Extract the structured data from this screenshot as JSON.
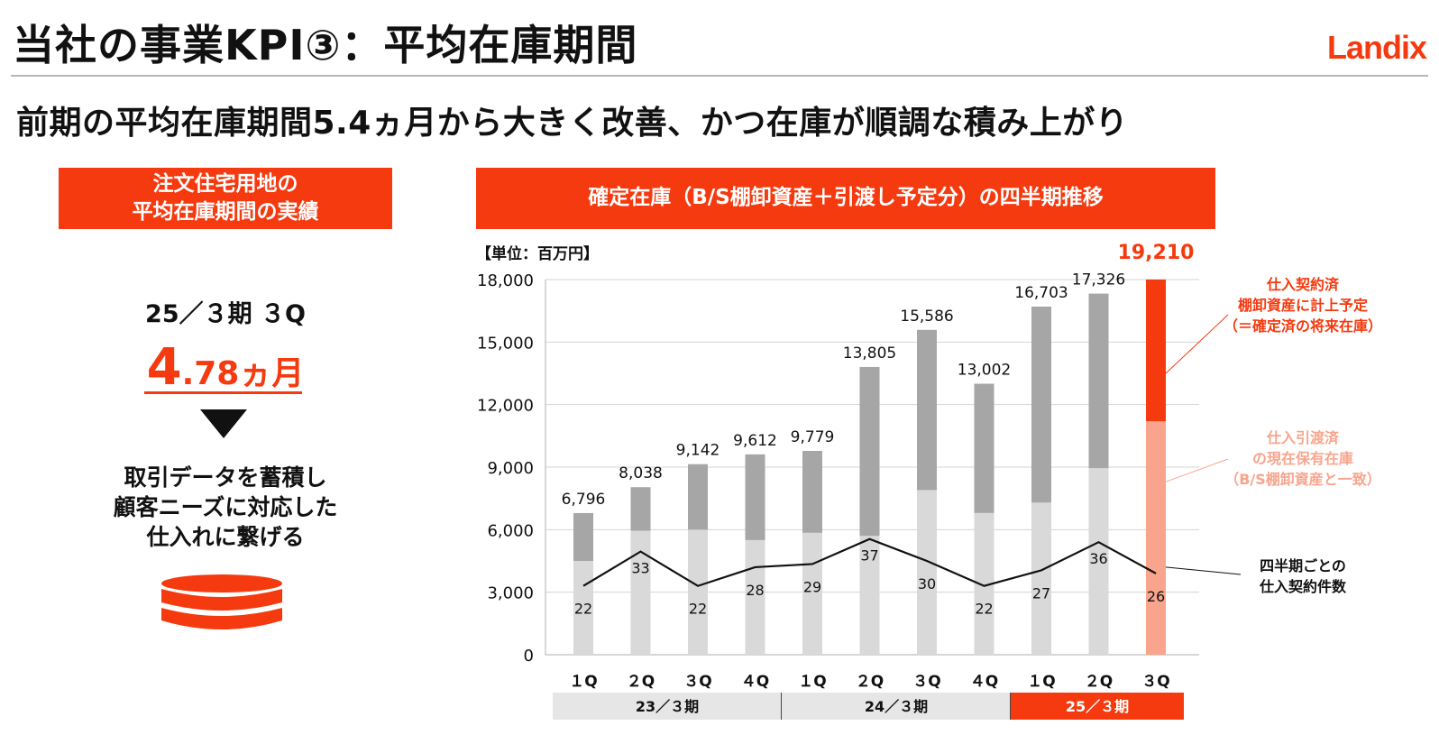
{
  "page": {
    "title": "当社の事業KPI③：平均在庫期間",
    "logo": "Landix",
    "headline": "前期の平均在庫期間5.4ヵ月から大きく改善、かつ在庫が順調な積み上がり"
  },
  "left_panel": {
    "header_line1": "注文住宅用地の",
    "header_line2": "平均在庫期間の実績",
    "period": "25／３期 ３Q",
    "value_main": "4",
    "value_decimal": ".78",
    "value_unit": "ヵ月",
    "note_line1": "取引データを蓄積し",
    "note_line2": "顧客ニーズに対応した",
    "note_line3": "仕入れに繋げる",
    "icon": "database-icon"
  },
  "right_panel": {
    "header": "確定在庫（B/S棚卸資産＋引渡し予定分）の四半期推移"
  },
  "colors": {
    "accent": "#f53a0f",
    "accent_light": "#f9a58d",
    "bar_dark": "#a6a6a6",
    "bar_light": "#d9d9d9",
    "fiscal_band": "#e6e6e6"
  },
  "chart_data": {
    "type": "bar",
    "unit_label": "【単位：百万円】",
    "categories": [
      "１Q",
      "２Q",
      "３Q",
      "４Q",
      "１Q",
      "２Q",
      "３Q",
      "４Q",
      "１Q",
      "２Q",
      "３Q"
    ],
    "fiscal_groups": [
      {
        "label": "23／３期",
        "quarters": 4
      },
      {
        "label": "24／３期",
        "quarters": 4
      },
      {
        "label": "25／３期",
        "quarters": 3
      }
    ],
    "yticks": [
      "0",
      "3,000",
      "6,000",
      "9,000",
      "12,000",
      "15,000",
      "18,000"
    ],
    "ylim": [
      0,
      18000
    ],
    "totals": [
      6796,
      8038,
      9142,
      9612,
      9779,
      13805,
      15586,
      13002,
      16703,
      17326,
      19210
    ],
    "total_labels": [
      "6,796",
      "8,038",
      "9,142",
      "9,612",
      "9,779",
      "13,805",
      "15,586",
      "13,002",
      "16,703",
      "17,326",
      "19,210"
    ],
    "lower_values": [
      4500,
      5950,
      6000,
      5500,
      5850,
      5700,
      7900,
      6800,
      7300,
      8950,
      11200
    ],
    "series": [
      {
        "name": "仕入引渡済の現在保有在庫（B/S棚卸資産と一致）",
        "role": "lower"
      },
      {
        "name": "仕入契約済棚卸資産に計上予定（＝確定済の将来在庫）",
        "role": "upper"
      }
    ],
    "line_series": {
      "name": "四半期ごとの仕入契約件数",
      "values": [
        22,
        33,
        22,
        28,
        29,
        37,
        30,
        22,
        27,
        36,
        26
      ],
      "plot_y": [
        3300,
        4950,
        3300,
        4200,
        4350,
        5550,
        4500,
        3300,
        4050,
        5400,
        3900
      ]
    },
    "annotations": {
      "upper": [
        "仕入契約済",
        "棚卸資産に計上予定",
        "（＝確定済の将来在庫）"
      ],
      "lower": [
        "仕入引渡済",
        "の現在保有在庫",
        "（B/S棚卸資産と一致）"
      ],
      "line": [
        "四半期ごとの",
        "仕入契約件数"
      ]
    },
    "grid": true
  }
}
